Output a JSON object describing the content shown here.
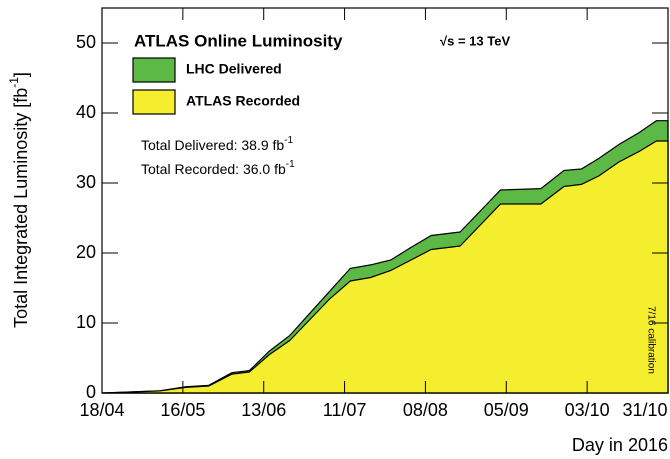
{
  "chart_data": {
    "type": "area",
    "title": "ATLAS Online Luminosity",
    "subtitle": "√s = 13 TeV",
    "x_label": "Day in 2016",
    "y_label": {
      "text": "Total Integrated Luminosity [fb",
      "sup": "-1",
      "tail": "]"
    },
    "annotations": [
      {
        "text": "Total Delivered: 38.9 fb",
        "sup": "-1"
      },
      {
        "text": "Total Recorded: 36.0 fb",
        "sup": "-1"
      },
      {
        "text": "7/16 calibration"
      }
    ],
    "x": [
      0,
      20,
      29,
      37,
      45,
      51,
      58,
      65,
      72,
      79,
      86,
      93,
      100,
      107,
      114,
      124,
      131,
      138,
      152,
      160,
      166,
      172,
      179,
      186,
      192,
      196
    ],
    "series": [
      {
        "name": "LHC Delivered",
        "color": "#5cb946",
        "values": [
          0,
          0.3,
          0.9,
          1.1,
          2.9,
          3.2,
          6.0,
          8.2,
          11.4,
          14.6,
          17.8,
          18.3,
          19.0,
          20.8,
          22.5,
          23.0,
          26.0,
          29.0,
          29.2,
          31.8,
          32.0,
          33.5,
          35.5,
          37.2,
          38.9,
          38.9
        ]
      },
      {
        "name": "ATLAS Recorded",
        "color": "#f5ee2e",
        "values": [
          0,
          0.3,
          0.8,
          1.0,
          2.7,
          3.0,
          5.5,
          7.5,
          10.5,
          13.5,
          16.0,
          16.5,
          17.5,
          19.0,
          20.5,
          21.0,
          24.0,
          27.0,
          27.0,
          29.5,
          29.8,
          31.0,
          33.0,
          34.5,
          36.0,
          36.0
        ]
      }
    ],
    "xlim": [
      0,
      196
    ],
    "xticks": [
      {
        "value": 0,
        "label": "18/04"
      },
      {
        "value": 28,
        "label": "16/05"
      },
      {
        "value": 56,
        "label": "13/06"
      },
      {
        "value": 84,
        "label": "11/07"
      },
      {
        "value": 112,
        "label": "08/08"
      },
      {
        "value": 140,
        "label": "05/09"
      },
      {
        "value": 168,
        "label": "03/10"
      },
      {
        "value": 196,
        "label": "31/10"
      }
    ],
    "ylim": [
      0,
      55
    ],
    "yticks": [
      0,
      10,
      20,
      30,
      40,
      50
    ],
    "grid": false
  }
}
